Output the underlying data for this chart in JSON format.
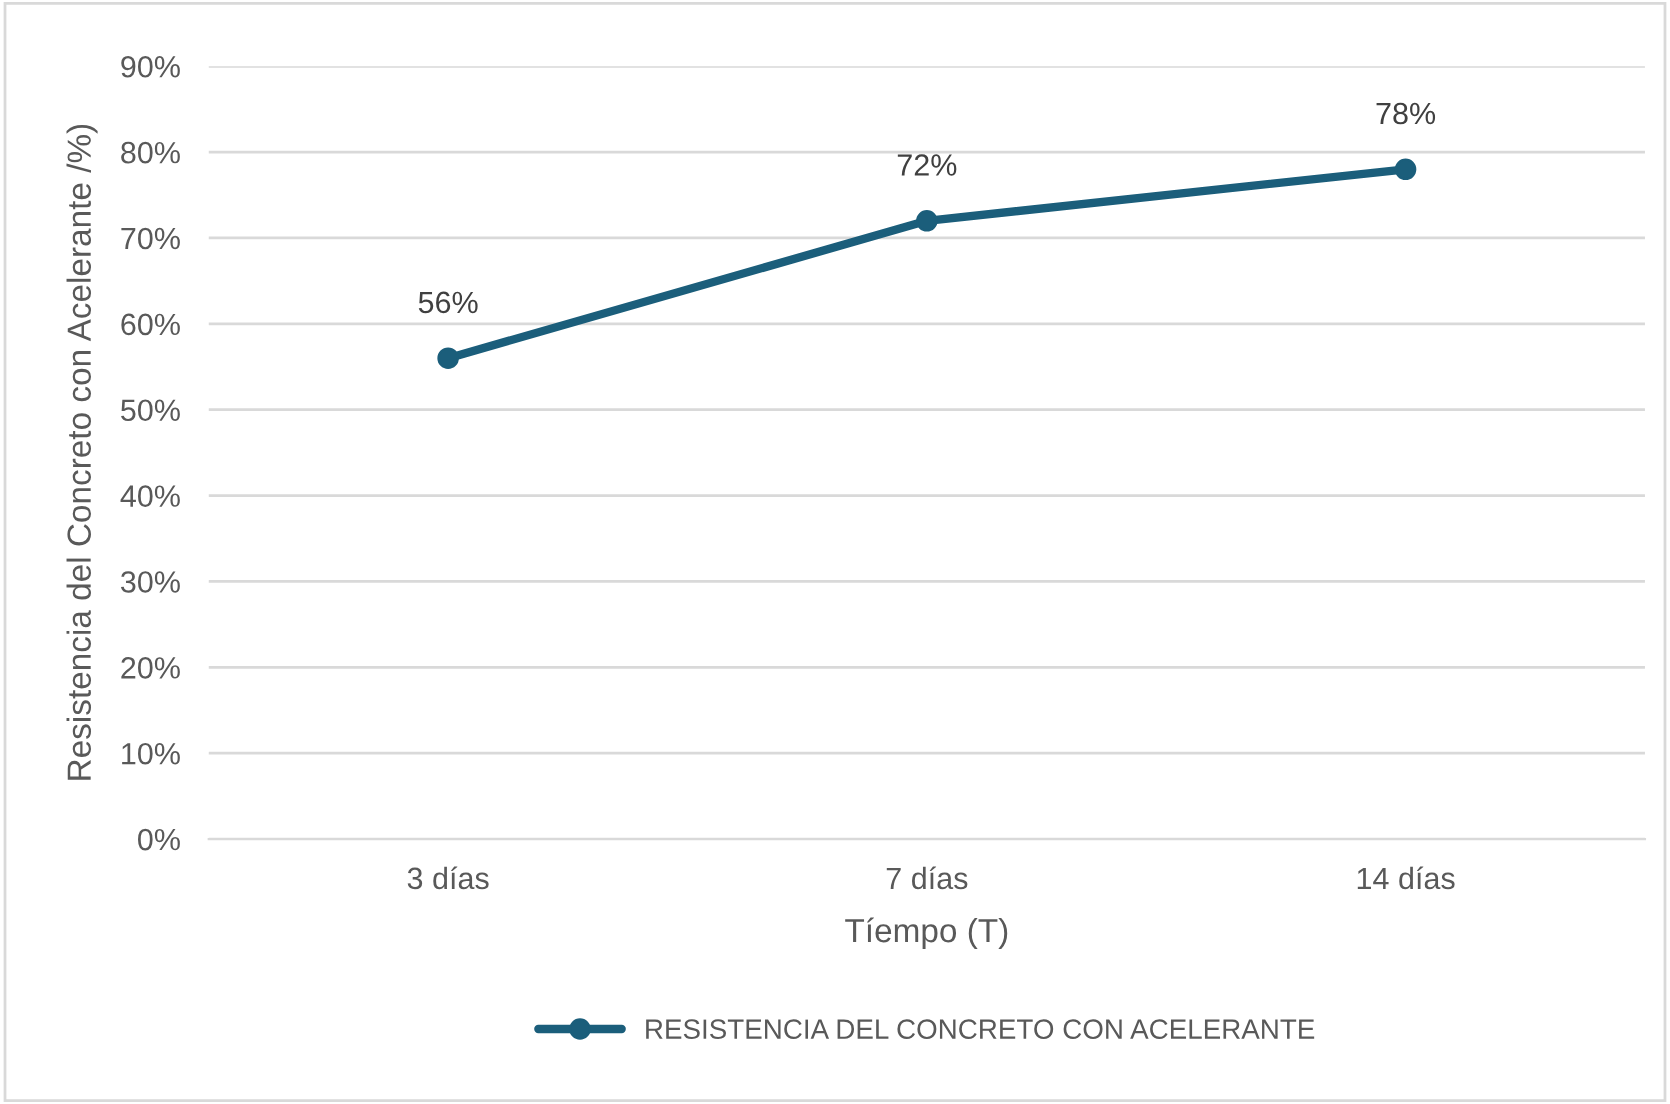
{
  "chart_data": {
    "type": "line",
    "xlabel": "Tíempo (T)",
    "ylabel": "Resistencia del Concreto con Acelerante /%)",
    "categories": [
      "3 días",
      "7 días",
      "14 días"
    ],
    "series": [
      {
        "name": "RESISTENCIA DEL CONCRETO CON ACELERANTE",
        "color": "#1b5e7b",
        "values": [
          56,
          72,
          78
        ]
      }
    ],
    "value_labels": [
      "56%",
      "72%",
      "78%"
    ],
    "ylim": [
      0,
      90
    ],
    "yticks": [
      {
        "value": 0,
        "label": "0%"
      },
      {
        "value": 10,
        "label": "10%"
      },
      {
        "value": 20,
        "label": "20%"
      },
      {
        "value": 30,
        "label": "30%"
      },
      {
        "value": 40,
        "label": "40%"
      },
      {
        "value": 50,
        "label": "50%"
      },
      {
        "value": 60,
        "label": "60%"
      },
      {
        "value": 70,
        "label": "70%"
      },
      {
        "value": 80,
        "label": "80%"
      },
      {
        "value": 90,
        "label": "90%"
      }
    ],
    "grid": "y",
    "legend": "bottom",
    "marker": "circle",
    "line_style": "solid"
  }
}
